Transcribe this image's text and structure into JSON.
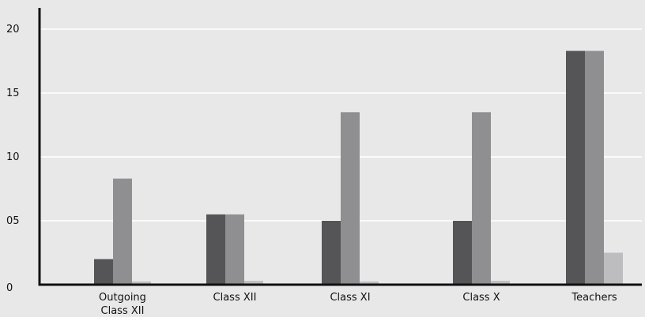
{
  "colors": {
    "background": "#e8e8e8",
    "grid": "#ffffff",
    "axis": "#111111",
    "series": [
      "#555558",
      "#8f8f91",
      "#bdbdbf"
    ]
  },
  "chart_data": {
    "type": "bar",
    "title": "",
    "xlabel": "",
    "ylabel": "",
    "ylim": [
      0,
      22
    ],
    "grid": true,
    "legend": "none",
    "y_ticks": [
      {
        "value": 0,
        "label": "0"
      },
      {
        "value": 5,
        "label": "05"
      },
      {
        "value": 10,
        "label": "10"
      },
      {
        "value": 15,
        "label": "15"
      },
      {
        "value": 20,
        "label": "20"
      }
    ],
    "categories": [
      [
        "Outgoing",
        "Class XII"
      ],
      [
        "Class XII"
      ],
      [
        "Class XI"
      ],
      [
        "Class X"
      ],
      [
        "Teachers"
      ]
    ],
    "series": [
      {
        "values": [
          2.0,
          5.5,
          5.0,
          5.0,
          18.3
        ]
      },
      {
        "values": [
          8.3,
          5.5,
          13.5,
          13.5,
          18.3
        ]
      },
      {
        "values": [
          0.25,
          0.3,
          0.25,
          0.3,
          2.5
        ]
      }
    ]
  }
}
